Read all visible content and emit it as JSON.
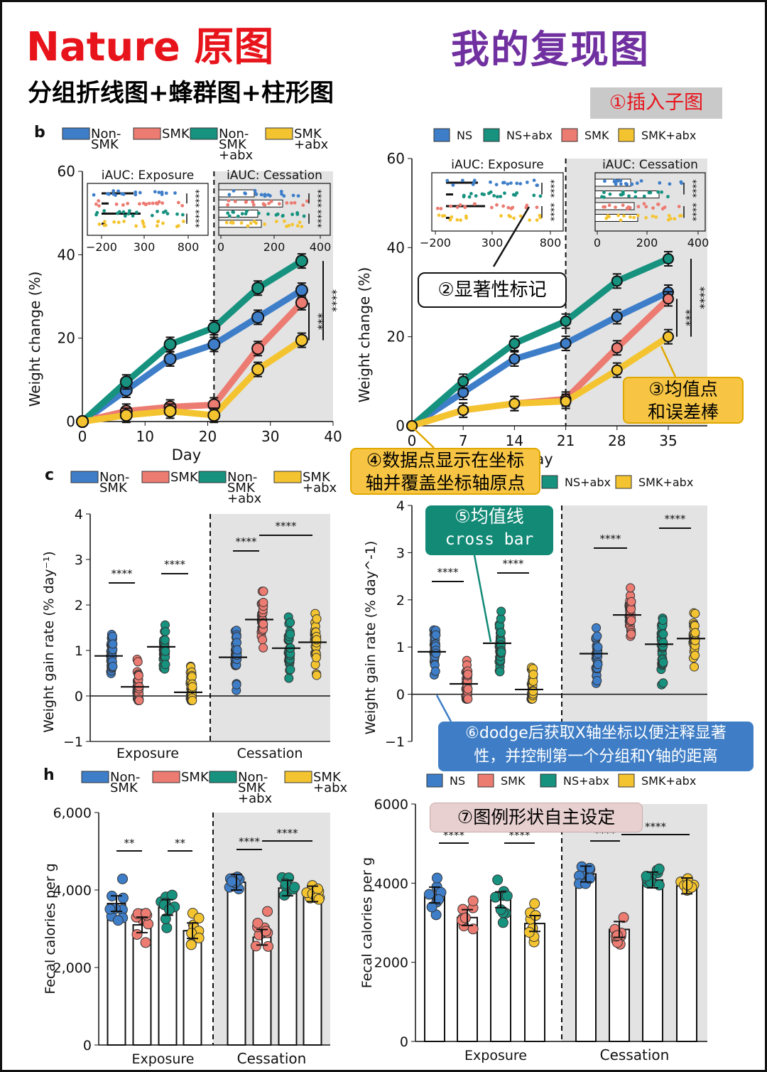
{
  "header": {
    "left_title": "Nature 原图",
    "right_title": "我的复现图",
    "subtitle": "分组折线图+蜂群图+柱形图"
  },
  "colors": {
    "ns": "#3e7ec9",
    "smk": "#ec7b72",
    "nsabx": "#16927f",
    "smkabx": "#f4c430",
    "cessation_shade": "#e3e3e3",
    "title_red": "#e8141c",
    "title_purple": "#7030a0"
  },
  "panel_labels": {
    "b": "b",
    "c": "c",
    "h": "h"
  },
  "legends": {
    "original": [
      "Non-SMK",
      "SMK",
      "Non-SMK+abx",
      "SMK+abx"
    ],
    "original_lines": [
      [
        "Non-",
        "SMK"
      ],
      [
        "SMK"
      ],
      [
        "Non-",
        "SMK",
        "+abx"
      ],
      [
        "SMK",
        "+abx"
      ]
    ],
    "replica": [
      "NS",
      "NS+abx",
      "SMK",
      "SMK+abx"
    ],
    "replica_c": [
      "NS+abx",
      "SMK+abx"
    ],
    "replica_h": [
      "NS",
      "SMK",
      "NS+abx",
      "SMK+abx"
    ]
  },
  "callouts": {
    "c1": "①插入子图",
    "c2": "②显著性标记",
    "c3_line1": "③均值点",
    "c3_line2": "和误差棒",
    "c4_line1": "④数据点显示在坐标",
    "c4_line2": "轴并覆盖坐标轴原点",
    "c5_line1": "⑤均值线",
    "c5_line2": "cross bar",
    "c6_line1": "⑥dodge后获取X轴坐标以便注释显著",
    "c6_line2": "性，并控制第一个分组和Y轴的距离",
    "c7": "⑦图例形状自主设定"
  },
  "chart_data": [
    {
      "id": "orig_b",
      "type": "line",
      "xlabel": "Day",
      "ylabel": "Weight change (%)",
      "x": [
        0,
        7,
        14,
        21,
        28,
        35
      ],
      "xticks": [
        "0",
        "10",
        "20",
        "30",
        "40"
      ],
      "xlim": [
        0,
        40
      ],
      "yticks": [
        "0",
        "20",
        "40",
        "60"
      ],
      "ylim": [
        0,
        60
      ],
      "series": [
        {
          "name": "Non-SMK",
          "values": [
            0,
            7.5,
            15,
            18.5,
            25,
            31.5
          ]
        },
        {
          "name": "SMK",
          "values": [
            0,
            2.5,
            3.5,
            4,
            17.5,
            28.5
          ]
        },
        {
          "name": "Non-SMK+abx",
          "values": [
            0,
            9.5,
            18.5,
            22.5,
            32,
            38.5
          ]
        },
        {
          "name": "SMK+abx",
          "values": [
            0,
            1.5,
            2.5,
            1.5,
            12.5,
            19.5
          ]
        }
      ],
      "significance": [
        "***",
        "****"
      ],
      "inset": {
        "titles": [
          "iAUC: Exposure",
          "iAUC: Cessation"
        ],
        "ticks_left": [
          "−200",
          "300",
          "800"
        ],
        "ticks_right": [
          "0",
          "200",
          "400"
        ],
        "stars": [
          "****",
          "****",
          "****",
          "****"
        ]
      }
    },
    {
      "id": "repl_b",
      "type": "line",
      "xlabel": "Day",
      "ylabel": "Weight change (%)",
      "x": [
        0,
        7,
        14,
        21,
        28,
        35
      ],
      "xticks": [
        "0",
        "7",
        "14",
        "21",
        "28",
        "35"
      ],
      "yticks": [
        "0",
        "20",
        "40",
        "60"
      ],
      "ylim": [
        0,
        60
      ],
      "series": [
        {
          "name": "NS",
          "values": [
            0,
            7.5,
            15,
            18.5,
            24.5,
            30
          ]
        },
        {
          "name": "NS+abx",
          "values": [
            0,
            10,
            18.5,
            23.5,
            32.5,
            37.5
          ]
        },
        {
          "name": "SMK",
          "values": [
            0,
            3.5,
            5,
            6,
            17.5,
            28.5
          ]
        },
        {
          "name": "SMK+abx",
          "values": [
            0,
            3.5,
            5,
            5.5,
            12.5,
            20
          ]
        }
      ],
      "significance": [
        "***",
        "****"
      ],
      "inset": {
        "titles": [
          "iAUC: Exposure",
          "iAUC: Cessation"
        ],
        "ticks_left": [
          "−200",
          "300",
          "800"
        ],
        "ticks_right": [
          "0",
          "200",
          "400"
        ],
        "stars": [
          "****",
          "****",
          "****",
          "****"
        ]
      }
    },
    {
      "id": "orig_c",
      "type": "scatter",
      "ylabel": "Weight gain rate (% day⁻¹)",
      "categories": [
        "Exposure",
        "Cessation"
      ],
      "yticks": [
        "−1",
        "0",
        "1",
        "2",
        "3",
        "4"
      ],
      "ylim": [
        -1,
        4
      ],
      "groups": [
        "Non-SMK",
        "SMK",
        "Non-SMK+abx",
        "SMK+abx"
      ],
      "means": {
        "Exposure": [
          0.88,
          0.2,
          1.08,
          0.08
        ],
        "Cessation": [
          0.85,
          1.68,
          1.05,
          1.18
        ]
      },
      "significance": [
        "****",
        "****",
        "****",
        "****"
      ]
    },
    {
      "id": "repl_c",
      "type": "scatter",
      "ylabel": "Weight gain rate (% day^-1)",
      "yticks": [
        "−1",
        "0",
        "1",
        "2",
        "3",
        "4"
      ],
      "ylim": [
        -1,
        4
      ],
      "groups": [
        "NS",
        "SMK",
        "NS+abx",
        "SMK+abx"
      ],
      "means": {
        "Exposure": [
          0.9,
          0.22,
          1.08,
          0.1
        ],
        "Cessation": [
          0.86,
          1.68,
          1.06,
          1.18
        ]
      },
      "significance": [
        "****",
        "****",
        "****",
        "****"
      ]
    },
    {
      "id": "orig_h",
      "type": "bar",
      "xlabel": "",
      "ylabel": "Fecal calories per g",
      "categories": [
        "Exposure",
        "Cessation"
      ],
      "yticks": [
        "0",
        "2,000",
        "4,000",
        "6,000"
      ],
      "ylim": [
        0,
        6000
      ],
      "series": [
        {
          "name": "Non-SMK",
          "values": [
            3650,
            4200
          ]
        },
        {
          "name": "SMK",
          "values": [
            3100,
            2780
          ]
        },
        {
          "name": "Non-SMK+abx",
          "values": [
            3550,
            4050
          ]
        },
        {
          "name": "SMK+abx",
          "values": [
            2950,
            3900
          ]
        }
      ],
      "significance": [
        "**",
        "**",
        "****",
        "****"
      ]
    },
    {
      "id": "repl_h",
      "type": "bar",
      "xlabel": "",
      "ylabel": "Fecal calories per g",
      "categories": [
        "Exposure",
        "Cessation"
      ],
      "yticks": [
        "0",
        "2000",
        "4000",
        "6000"
      ],
      "ylim": [
        0,
        6000
      ],
      "series": [
        {
          "name": "NS",
          "values": [
            3700,
            4230
          ]
        },
        {
          "name": "SMK",
          "values": [
            3130,
            2830
          ]
        },
        {
          "name": "NS+abx",
          "values": [
            3580,
            4080
          ]
        },
        {
          "name": "SMK+abx",
          "values": [
            2980,
            3930
          ]
        }
      ],
      "significance": [
        "****",
        "****",
        "****",
        "****"
      ]
    }
  ]
}
